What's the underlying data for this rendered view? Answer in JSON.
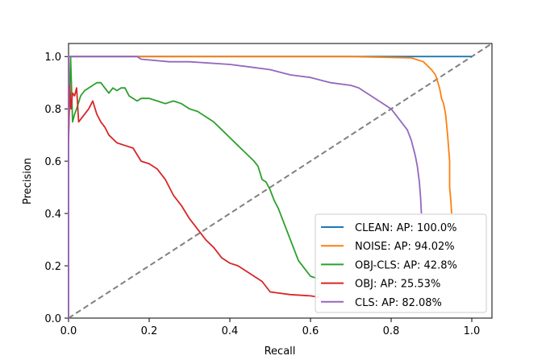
{
  "chart_data": {
    "type": "line",
    "xlabel": "Recall",
    "ylabel": "Precision",
    "xlim": [
      0.0,
      1.05
    ],
    "ylim": [
      0.0,
      1.05
    ],
    "xticks": [
      "0.0",
      "0.2",
      "0.4",
      "0.6",
      "0.8",
      "1.0"
    ],
    "yticks": [
      "0.0",
      "0.2",
      "0.4",
      "0.6",
      "0.8",
      "1.0"
    ],
    "grid": false,
    "legend_position": "lower-right",
    "series": [
      {
        "name": "CLEAN: AP: 100.0%",
        "color": "#1f77b4",
        "x": [
          0.0,
          0.0,
          1.0
        ],
        "y": [
          0.0,
          1.0,
          1.0
        ]
      },
      {
        "name": "NOISE: AP: 94.02%",
        "color": "#ff7f0e",
        "x": [
          0.0,
          0.0,
          0.7,
          0.85,
          0.88,
          0.9,
          0.91,
          0.92,
          0.925,
          0.93,
          0.935,
          0.94,
          0.945,
          0.945,
          0.948,
          0.95
        ],
        "y": [
          0.0,
          1.0,
          1.0,
          0.995,
          0.98,
          0.95,
          0.93,
          0.88,
          0.84,
          0.82,
          0.78,
          0.7,
          0.6,
          0.5,
          0.45,
          0.4
        ]
      },
      {
        "name": "OBJ-CLS: AP: 42.8%",
        "color": "#2ca02c",
        "x": [
          0.0,
          0.005,
          0.01,
          0.015,
          0.02,
          0.03,
          0.04,
          0.05,
          0.06,
          0.07,
          0.08,
          0.09,
          0.1,
          0.11,
          0.12,
          0.13,
          0.14,
          0.15,
          0.16,
          0.17,
          0.18,
          0.2,
          0.22,
          0.24,
          0.26,
          0.28,
          0.3,
          0.32,
          0.34,
          0.36,
          0.38,
          0.4,
          0.42,
          0.44,
          0.46,
          0.47,
          0.48,
          0.49,
          0.5,
          0.51,
          0.52,
          0.53,
          0.54,
          0.55,
          0.57,
          0.6,
          0.62
        ],
        "y": [
          0.7,
          1.0,
          0.75,
          0.78,
          0.8,
          0.85,
          0.87,
          0.88,
          0.89,
          0.9,
          0.9,
          0.88,
          0.86,
          0.88,
          0.87,
          0.88,
          0.88,
          0.85,
          0.84,
          0.83,
          0.84,
          0.84,
          0.83,
          0.82,
          0.83,
          0.82,
          0.8,
          0.79,
          0.77,
          0.75,
          0.72,
          0.69,
          0.66,
          0.63,
          0.6,
          0.58,
          0.53,
          0.52,
          0.49,
          0.45,
          0.42,
          0.38,
          0.34,
          0.3,
          0.22,
          0.16,
          0.15
        ]
      },
      {
        "name": "OBJ: AP: 25.53%",
        "color": "#d62728",
        "x": [
          0.0,
          0.003,
          0.006,
          0.01,
          0.015,
          0.02,
          0.025,
          0.03,
          0.04,
          0.05,
          0.06,
          0.07,
          0.08,
          0.09,
          0.1,
          0.12,
          0.14,
          0.16,
          0.18,
          0.2,
          0.22,
          0.24,
          0.26,
          0.28,
          0.3,
          0.32,
          0.34,
          0.36,
          0.38,
          0.4,
          0.42,
          0.45,
          0.48,
          0.5,
          0.55,
          0.6,
          0.62
        ],
        "y": [
          0.67,
          0.89,
          0.8,
          0.86,
          0.85,
          0.88,
          0.75,
          0.76,
          0.78,
          0.8,
          0.83,
          0.78,
          0.75,
          0.73,
          0.7,
          0.67,
          0.66,
          0.65,
          0.6,
          0.59,
          0.57,
          0.53,
          0.47,
          0.43,
          0.38,
          0.34,
          0.3,
          0.27,
          0.23,
          0.21,
          0.2,
          0.17,
          0.14,
          0.1,
          0.09,
          0.085,
          0.08
        ]
      },
      {
        "name": "CLS: AP: 82.08%",
        "color": "#9467bd",
        "x": [
          0.0,
          0.0,
          0.17,
          0.18,
          0.25,
          0.3,
          0.4,
          0.45,
          0.5,
          0.55,
          0.6,
          0.65,
          0.7,
          0.72,
          0.74,
          0.76,
          0.78,
          0.8,
          0.82,
          0.84,
          0.85,
          0.86,
          0.865,
          0.87,
          0.873,
          0.875
        ],
        "y": [
          0.0,
          1.0,
          1.0,
          0.99,
          0.98,
          0.98,
          0.97,
          0.96,
          0.95,
          0.93,
          0.92,
          0.9,
          0.89,
          0.88,
          0.86,
          0.84,
          0.82,
          0.8,
          0.76,
          0.72,
          0.68,
          0.62,
          0.58,
          0.52,
          0.46,
          0.4
        ]
      }
    ],
    "reference_line": {
      "color": "#808080",
      "x": [
        0.0,
        1.05
      ],
      "y": [
        0.0,
        1.05
      ]
    }
  }
}
